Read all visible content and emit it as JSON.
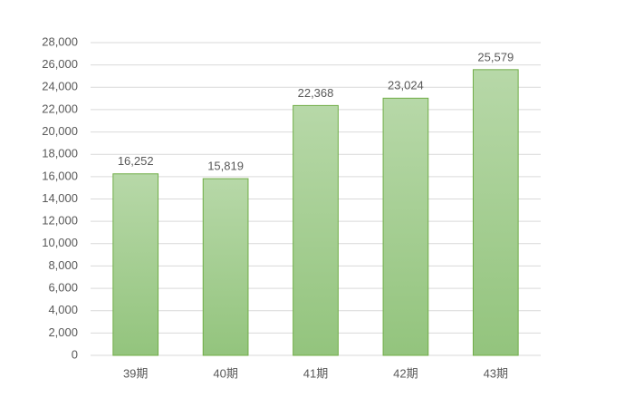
{
  "chart_data": {
    "type": "bar",
    "categories": [
      "39期",
      "40期",
      "41期",
      "42期",
      "43期"
    ],
    "values": [
      16252,
      15819,
      22368,
      23024,
      25579
    ],
    "value_labels": [
      "16,252",
      "15,819",
      "22,368",
      "23,024",
      "25,579"
    ],
    "color": "#a6cf93",
    "ylim": [
      0,
      28000
    ],
    "yticks": [
      0,
      {
        "value": 2000,
        "label": "2,000"
      },
      {
        "value": 4000,
        "label": "4,000"
      },
      {
        "value": 6000,
        "label": "6,000"
      },
      {
        "value": 8000,
        "label": "8,000"
      },
      {
        "value": 10000,
        "label": "10,000"
      },
      {
        "value": 12000,
        "label": "12,000"
      },
      {
        "value": 14000,
        "label": "14,000"
      },
      {
        "value": 16000,
        "label": "16,000"
      },
      {
        "value": 18000,
        "label": "18,000"
      },
      {
        "value": 20000,
        "label": "20,000"
      },
      {
        "value": 22000,
        "label": "22,000"
      },
      {
        "value": 24000,
        "label": "24,000"
      },
      {
        "value": 26000,
        "label": "26,000"
      },
      {
        "value": 28000,
        "label": "28,000"
      }
    ],
    "grid": true
  }
}
